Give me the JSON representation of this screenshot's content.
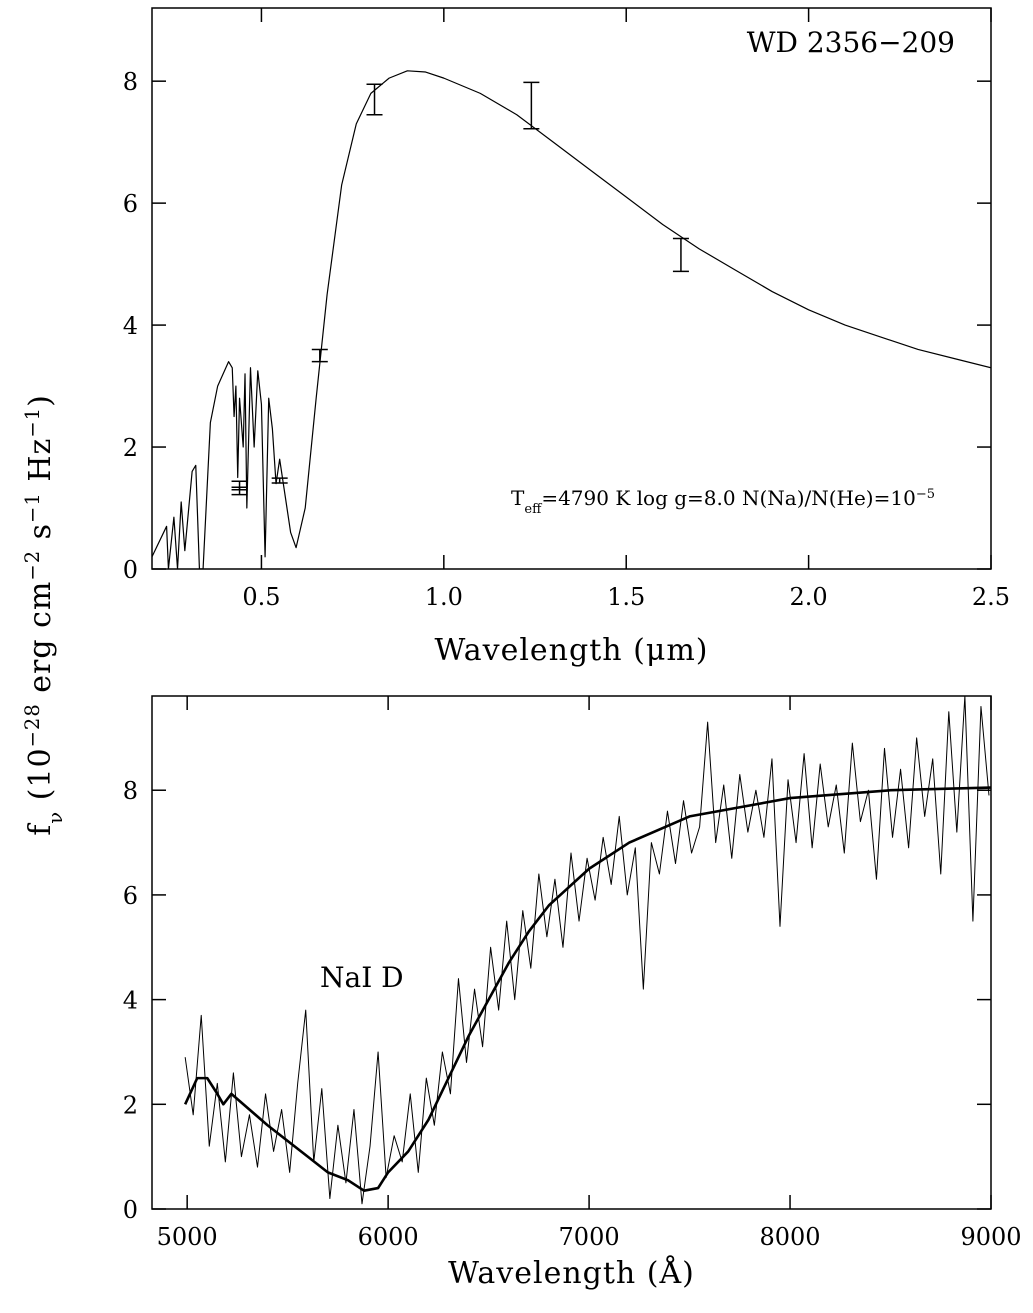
{
  "chart_data": [
    {
      "type": "line",
      "x_label": "Wavelength (μm)",
      "y_label": [
        {
          "text": "f"
        },
        {
          "text": "ν",
          "sub": true
        },
        {
          "text": " (10"
        },
        {
          "text": "−28",
          "sup": true
        },
        {
          "text": " erg cm"
        },
        {
          "text": "−2",
          "sup": true
        },
        {
          "text": " s"
        },
        {
          "text": "−1",
          "sup": true
        },
        {
          "text": " Hz"
        },
        {
          "text": "−1",
          "sup": true
        },
        {
          "text": ")"
        }
      ],
      "annotations": [
        [
          {
            "text": "WD 2356−209"
          }
        ],
        [
          {
            "text": "T"
          },
          {
            "text": "eff",
            "sub": true
          },
          {
            "text": "=4790 K  log g=8.0  N(Na)/N(He)=10"
          },
          {
            "text": "−5",
            "sup": true
          }
        ]
      ],
      "xlim": [
        0.2,
        2.5
      ],
      "ylim": [
        0,
        9.2
      ],
      "xticks": [
        0.5,
        {
          "value": 1,
          "label": "1.0"
        },
        1.5,
        {
          "value": 2,
          "label": "2.0"
        },
        2.5
      ],
      "yticks": [
        0,
        2,
        4,
        6,
        8
      ],
      "series": [
        {
          "type": "line",
          "color": "#000000",
          "line_width": 1.2,
          "x": [
            0.2,
            0.24,
            0.245,
            0.26,
            0.27,
            0.28,
            0.29,
            0.31,
            0.32,
            0.33,
            0.34,
            0.36,
            0.38,
            0.41,
            0.42,
            0.425,
            0.43,
            0.435,
            0.44,
            0.45,
            0.455,
            0.46,
            0.47,
            0.48,
            0.49,
            0.5,
            0.51,
            0.52,
            0.53,
            0.54,
            0.55,
            0.57,
            0.58,
            0.595,
            0.62,
            0.65,
            0.68,
            0.72,
            0.76,
            0.8,
            0.85,
            0.9,
            0.95,
            1.0,
            1.1,
            1.2,
            1.3,
            1.4,
            1.5,
            1.6,
            1.7,
            1.8,
            1.9,
            2.0,
            2.1,
            2.2,
            2.3,
            2.4,
            2.5
          ],
          "values": [
            0.2,
            0.7,
            0.0,
            0.85,
            0.0,
            1.1,
            0.3,
            1.6,
            1.7,
            0.0,
            0.0,
            2.4,
            3.0,
            3.4,
            3.3,
            2.5,
            3.0,
            1.5,
            2.8,
            2.0,
            3.2,
            1.0,
            3.3,
            2.0,
            3.25,
            2.7,
            0.2,
            2.8,
            2.3,
            1.4,
            1.8,
            1.0,
            0.6,
            0.35,
            1.0,
            2.8,
            4.5,
            6.3,
            7.3,
            7.8,
            8.05,
            8.17,
            8.15,
            8.05,
            7.8,
            7.45,
            7.0,
            6.55,
            6.1,
            5.65,
            5.25,
            4.9,
            4.55,
            4.25,
            4.0,
            3.8,
            3.6,
            3.45,
            3.3
          ]
        },
        {
          "type": "errorbar",
          "color": "#000000",
          "x": [
            0.44,
            0.44,
            0.55,
            0.66,
            0.81,
            1.24,
            1.65
          ],
          "values": [
            1.37,
            1.28,
            1.45,
            3.5,
            7.7,
            7.6,
            5.15
          ],
          "errors": [
            0.07,
            0.06,
            0.04,
            0.1,
            0.25,
            0.38,
            0.27
          ]
        }
      ]
    },
    {
      "type": "line",
      "x_label": "Wavelength (Å)",
      "annotations": [
        [
          {
            "text": "NaI D"
          }
        ]
      ],
      "xlim": [
        4825,
        9000
      ],
      "ylim": [
        0,
        9.8
      ],
      "xticks": [
        5000,
        6000,
        7000,
        8000,
        9000
      ],
      "yticks": [
        0,
        2,
        4,
        6,
        8
      ],
      "series": [
        {
          "type": "line",
          "color": "#000000",
          "line_width": 1,
          "x": [
            4990,
            5030,
            5070,
            5110,
            5150,
            5190,
            5230,
            5270,
            5310,
            5350,
            5390,
            5430,
            5470,
            5510,
            5550,
            5590,
            5630,
            5670,
            5710,
            5750,
            5790,
            5830,
            5870,
            5910,
            5950,
            5990,
            6030,
            6070,
            6110,
            6150,
            6190,
            6230,
            6270,
            6310,
            6350,
            6390,
            6430,
            6470,
            6510,
            6550,
            6590,
            6630,
            6670,
            6710,
            6750,
            6790,
            6830,
            6870,
            6910,
            6950,
            6990,
            7030,
            7070,
            7110,
            7150,
            7190,
            7230,
            7270,
            7310,
            7350,
            7390,
            7430,
            7470,
            7510,
            7550,
            7590,
            7630,
            7670,
            7710,
            7750,
            7790,
            7830,
            7870,
            7910,
            7950,
            7990,
            8030,
            8070,
            8110,
            8150,
            8190,
            8230,
            8270,
            8310,
            8350,
            8390,
            8430,
            8470,
            8510,
            8550,
            8590,
            8630,
            8670,
            8710,
            8750,
            8790,
            8830,
            8870,
            8910,
            8950,
            8990
          ],
          "values": [
            2.9,
            1.8,
            3.7,
            1.2,
            2.4,
            0.9,
            2.6,
            1.0,
            1.8,
            0.8,
            2.2,
            1.1,
            1.9,
            0.7,
            2.4,
            3.8,
            0.9,
            2.3,
            0.2,
            1.6,
            0.5,
            1.9,
            0.1,
            1.2,
            3.0,
            0.6,
            1.4,
            0.9,
            2.2,
            0.7,
            2.5,
            1.6,
            3.0,
            2.2,
            4.4,
            2.8,
            4.2,
            3.1,
            5.0,
            3.8,
            5.5,
            4.0,
            5.7,
            4.6,
            6.4,
            5.2,
            6.3,
            5.0,
            6.8,
            5.5,
            6.7,
            5.9,
            7.1,
            6.2,
            7.5,
            6.0,
            6.9,
            4.2,
            7.0,
            6.4,
            7.6,
            6.6,
            7.8,
            6.8,
            7.3,
            9.3,
            7.0,
            8.1,
            6.7,
            8.3,
            7.2,
            8.0,
            7.1,
            8.6,
            5.4,
            8.2,
            7.0,
            8.7,
            6.9,
            8.5,
            7.3,
            8.1,
            6.8,
            8.9,
            7.4,
            8.0,
            6.3,
            8.8,
            7.1,
            8.4,
            6.9,
            9.0,
            7.5,
            8.6,
            6.4,
            9.5,
            7.2,
            9.8,
            5.5,
            9.6,
            7.9
          ]
        },
        {
          "type": "line",
          "color": "#000000",
          "line_width": 2.6,
          "x": [
            4990,
            5050,
            5100,
            5150,
            5180,
            5220,
            5400,
            5600,
            5700,
            5800,
            5880,
            5950,
            6000,
            6100,
            6200,
            6300,
            6400,
            6500,
            6600,
            6700,
            6800,
            7000,
            7200,
            7500,
            8000,
            8500,
            9000
          ],
          "values": [
            2.0,
            2.5,
            2.5,
            2.2,
            2.0,
            2.2,
            1.6,
            1.0,
            0.7,
            0.55,
            0.35,
            0.4,
            0.7,
            1.1,
            1.7,
            2.5,
            3.3,
            4.0,
            4.7,
            5.3,
            5.8,
            6.5,
            7.0,
            7.5,
            7.85,
            8.0,
            8.05
          ]
        }
      ]
    }
  ]
}
